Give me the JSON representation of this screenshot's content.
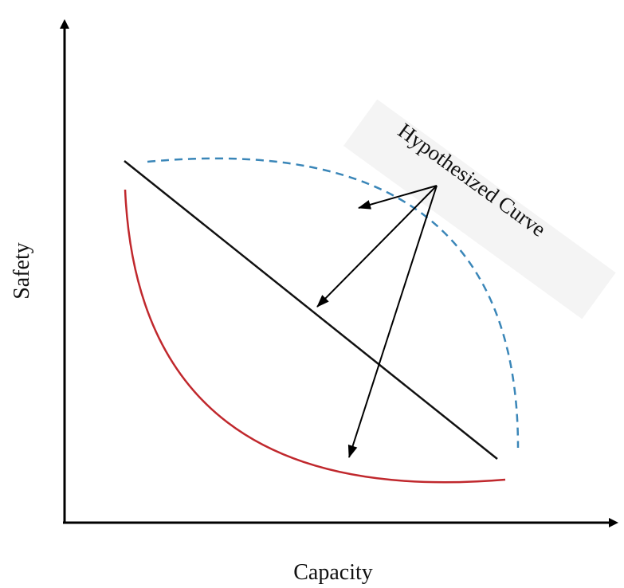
{
  "axes": {
    "x_label": "Capacity",
    "y_label": "Safety"
  },
  "annotation": {
    "label": "Hypothesized Curve"
  },
  "colors": {
    "axis": "#000000",
    "linear_curve": "#111111",
    "convex_curve": "#c0282d",
    "concave_curve": "#3a86b8",
    "arrows": "#000000",
    "label_background": "#f4f4f4"
  },
  "curves": [
    {
      "id": "concave",
      "style": "dashed"
    },
    {
      "id": "linear",
      "style": "solid"
    },
    {
      "id": "convex",
      "style": "solid"
    }
  ]
}
